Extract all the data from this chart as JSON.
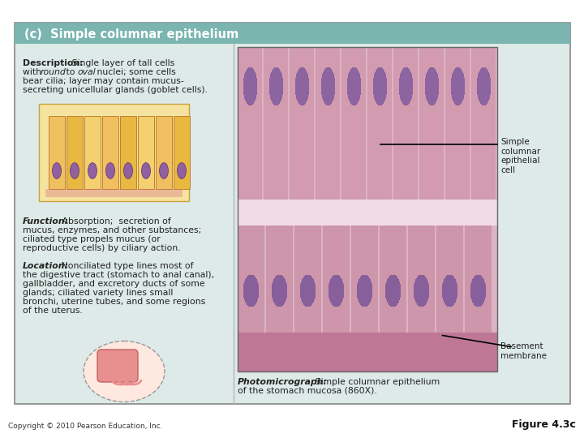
{
  "title": "(c)  Simple columnar epithelium",
  "title_bg": "#7ab5b0",
  "title_color": "#ffffff",
  "main_bg": "#ddeae8",
  "right_panel_bg": "#ffffff",
  "outer_bg": "#ffffff",
  "description_bold": "Description:",
  "description_text": " Single layer of tall cells\nwith ",
  "description_italic1": "round",
  "description_text2": " to ",
  "description_italic2": "oval",
  "description_text3": " nuclei; some cells\nbear cilia; layer may contain mucus-\nsecreting unicellular glands (goblet cells).",
  "function_bold": "Function:",
  "function_text": " Absorption;  secretion of\nmucus, enzymes, and other substances;\nciliated type propels mucus (or\nreproductive cells) by ciliary action.",
  "location_bold": "Location:",
  "location_text": " Nonciliated type lines most of\nthe digestive tract (stomach to anal canal),\ngallbladder, and excretory ducts of some\nglands; ciliated variety lines small\nbronchi, uterine tubes, and some regions\nof the uterus.",
  "photomicrograph_bold": "Photomicrograph:",
  "photomicrograph_text": " Simple columnar epithelium\nof the stomach mucosa (860X).",
  "label1": "Simple\ncolumnar\nepithelial\ncell",
  "label2": "Basement\nmembrane",
  "copyright": "Copyright © 2010 Pearson Education, Inc.",
  "figure": "Figure 4.3c",
  "micro_image_placeholder_color": "#d4a0b0",
  "illustration_placeholder_color": "#f0d080",
  "anatomy_placeholder_color": "#f5c0c0",
  "text_color": "#222222",
  "border_color": "#888888"
}
